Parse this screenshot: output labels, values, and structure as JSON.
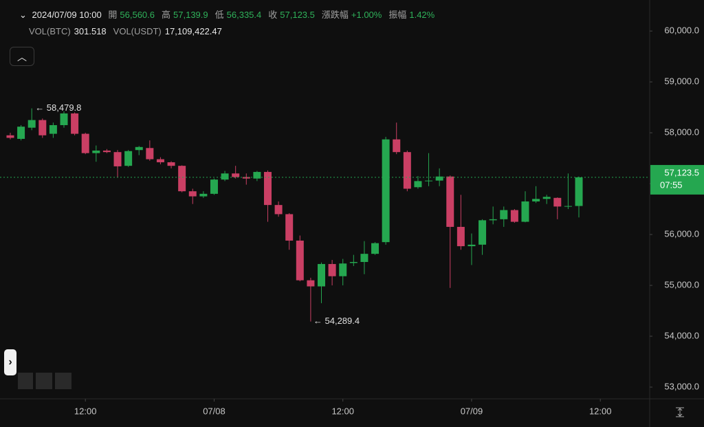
{
  "header": {
    "datetime": "2024/07/09 10:00",
    "fields": [
      {
        "label": "開",
        "value": "56,560.6"
      },
      {
        "label": "高",
        "value": "57,139.9"
      },
      {
        "label": "低",
        "value": "56,335.4"
      },
      {
        "label": "收",
        "value": "57,123.5"
      },
      {
        "label": "漲跌幅",
        "value": "+1.00%"
      },
      {
        "label": "振幅",
        "value": "1.42%"
      }
    ],
    "volume": [
      {
        "label": "VOL(BTC)",
        "value": "301.518"
      },
      {
        "label": "VOL(USDT)",
        "value": "17,109,422.47"
      }
    ]
  },
  "chart_data": {
    "type": "candlestick",
    "categories": [
      null,
      null,
      null,
      null,
      null,
      null,
      null,
      null,
      null,
      null,
      null,
      null,
      null,
      null,
      null,
      null,
      null,
      null,
      null,
      null,
      null,
      null,
      null,
      null,
      null,
      null,
      null,
      null,
      null,
      null,
      null,
      null,
      null,
      null,
      null,
      null,
      null,
      null,
      null,
      null,
      null,
      null,
      null,
      null,
      null,
      null,
      null,
      null,
      null,
      null,
      null,
      null,
      null,
      null
    ],
    "open": [
      57950,
      57880,
      58100,
      58250,
      57980,
      58150,
      58380,
      57980,
      57600,
      57650,
      57620,
      57350,
      57660,
      57700,
      57480,
      57420,
      57350,
      56850,
      56750,
      56800,
      57080,
      57200,
      57130,
      57100,
      57230,
      56580,
      56400,
      55880,
      55100,
      54980,
      55420,
      55180,
      55440,
      55460,
      55620,
      55850,
      57870,
      57620,
      56930,
      57050,
      57060,
      57140,
      56150,
      55770,
      55800,
      56280,
      56300,
      56480,
      56250,
      56650,
      56700,
      56720,
      56550,
      56560.6
    ],
    "high": [
      58000,
      58150,
      58479.8,
      58280,
      58200,
      58420,
      58400,
      58000,
      57750,
      57680,
      57660,
      57660,
      57740,
      57850,
      57520,
      57440,
      57360,
      56900,
      56850,
      57100,
      57250,
      57350,
      57200,
      57250,
      57260,
      56650,
      56420,
      55980,
      55150,
      55450,
      55500,
      55520,
      55600,
      55870,
      55850,
      57920,
      58200,
      57650,
      57150,
      57600,
      57300,
      57160,
      56780,
      56020,
      56300,
      56550,
      56550,
      56500,
      56850,
      56950,
      56780,
      56730,
      57200,
      57139.9
    ],
    "low": [
      57870,
      57850,
      58050,
      57900,
      57900,
      58100,
      57950,
      57580,
      57430,
      57600,
      57120,
      57330,
      57560,
      57450,
      57380,
      57300,
      56830,
      56600,
      56720,
      56780,
      57050,
      57100,
      56980,
      57050,
      56250,
      56350,
      55700,
      55080,
      54289.4,
      54650,
      55000,
      55000,
      55380,
      55220,
      55600,
      55800,
      57580,
      56850,
      56900,
      56950,
      56950,
      54950,
      55700,
      55400,
      55600,
      56200,
      56150,
      56230,
      56240,
      56620,
      56600,
      56300,
      56500,
      56335.4
    ],
    "close": [
      57900,
      58120,
      58250,
      57950,
      58150,
      58380,
      57980,
      57600,
      57650,
      57620,
      57340,
      57640,
      57720,
      57480,
      57420,
      57350,
      56850,
      56750,
      56800,
      57080,
      57200,
      57130,
      57100,
      57230,
      56580,
      56400,
      55880,
      55100,
      54980,
      55420,
      55180,
      55430,
      55460,
      55620,
      55830,
      57870,
      57620,
      56900,
      57050,
      57060,
      57140,
      56150,
      55770,
      55800,
      56280,
      56300,
      56480,
      56250,
      56650,
      56700,
      56740,
      56550,
      56560,
      57123.5
    ],
    "up_color": "#25a750",
    "down_color": "#ca3f64",
    "xlim": [
      -0.96,
      59.6
    ],
    "ylim": [
      52770,
      60610
    ],
    "xticks": [
      {
        "value": 7,
        "label": "12:00"
      },
      {
        "value": 19,
        "label": "07/08"
      },
      {
        "value": 31,
        "label": "12:00"
      },
      {
        "value": 43,
        "label": "07/09"
      },
      {
        "value": 55,
        "label": "12:00"
      }
    ],
    "yticks": [
      {
        "value": 53000,
        "label": "53,000.0"
      },
      {
        "value": 54000,
        "label": "54,000.0"
      },
      {
        "value": 55000,
        "label": "55,000.0"
      },
      {
        "value": 56000,
        "label": "56,000.0"
      },
      {
        "value": 57000,
        "label": "57,000.0"
      },
      {
        "value": 58000,
        "label": "58,000.0"
      },
      {
        "value": 59000,
        "label": "59,000.0"
      },
      {
        "value": 60000,
        "label": "60,000.0"
      }
    ],
    "max_label": "← 58,479.8",
    "min_label": "← 54,289.4",
    "last_price": {
      "value": 57123.5,
      "label": "57,123.5"
    },
    "countdown": "07:55"
  }
}
